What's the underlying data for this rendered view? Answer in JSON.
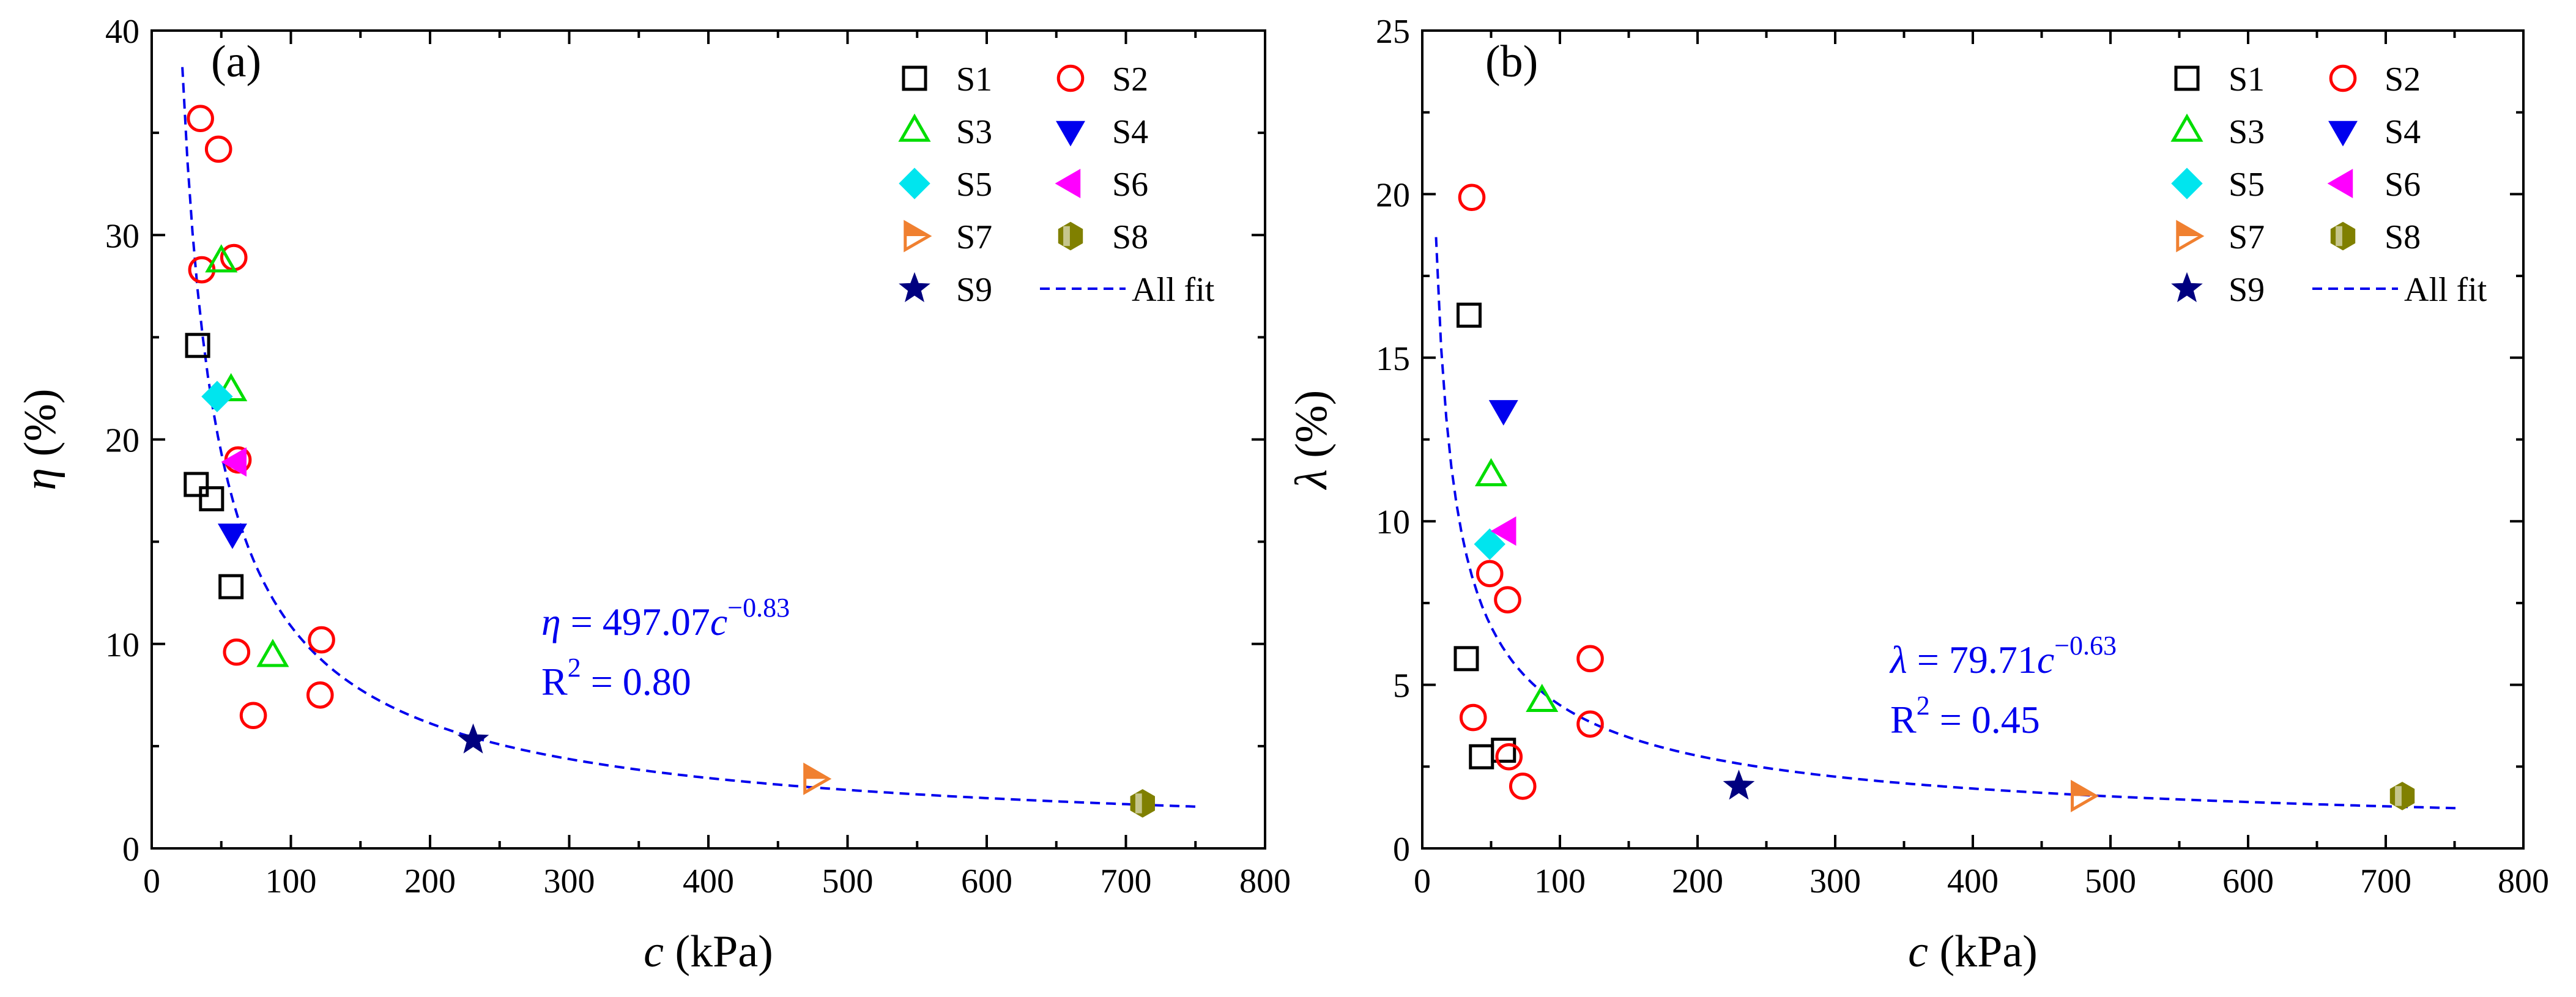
{
  "colors": {
    "S1": "#000000",
    "S2": "#ff0000",
    "S3": "#00dd00",
    "S4": "#0000ee",
    "S5": "#00e5ee",
    "S6": "#ff00ff",
    "S7": "#f08030",
    "S8": "#808000",
    "S9": "#000080",
    "fit": "#0000ee",
    "axis": "#000000"
  },
  "legend": {
    "S1": "S1",
    "S2": "S2",
    "S3": "S3",
    "S4": "S4",
    "S5": "S5",
    "S6": "S6",
    "S7": "S7",
    "S8": "S8",
    "S9": "S9",
    "fit": "All fit"
  },
  "chart_data": [
    {
      "type": "scatter",
      "panel_label": "(a)",
      "xlabel_symbol": "c",
      "xlabel_unit": " (kPa)",
      "ylabel_symbol": "η",
      "ylabel_unit": " (%)",
      "xlim": [
        0,
        800
      ],
      "ylim": [
        0,
        40
      ],
      "xticks": [
        0,
        100,
        200,
        300,
        400,
        500,
        600,
        700,
        800
      ],
      "yticks": [
        0,
        10,
        20,
        30,
        40
      ],
      "legend_position": "top-right",
      "series": [
        {
          "name": "S1",
          "marker": "square-open",
          "points": [
            [
              33,
              24.6
            ],
            [
              32,
              17.8
            ],
            [
              43,
              17.1
            ],
            [
              57,
              12.8
            ]
          ]
        },
        {
          "name": "S2",
          "marker": "circle-open",
          "points": [
            [
              35,
              35.7
            ],
            [
              48,
              34.2
            ],
            [
              36,
              28.3
            ],
            [
              59,
              28.9
            ],
            [
              62,
              19.0
            ],
            [
              61,
              9.6
            ],
            [
              122,
              10.2
            ],
            [
              121,
              7.5
            ],
            [
              73,
              6.5
            ]
          ]
        },
        {
          "name": "S3",
          "marker": "triangle-up-open",
          "points": [
            [
              50,
              28.7
            ],
            [
              57,
              22.4
            ],
            [
              87,
              9.4
            ]
          ]
        },
        {
          "name": "S4",
          "marker": "triangle-down-filled",
          "points": [
            [
              58,
              15.4
            ]
          ]
        },
        {
          "name": "S5",
          "marker": "diamond-filled",
          "points": [
            [
              47,
              22.1
            ]
          ]
        },
        {
          "name": "S6",
          "marker": "triangle-left-filled",
          "points": [
            [
              61,
              18.9
            ]
          ]
        },
        {
          "name": "S7",
          "marker": "triangle-right-half",
          "points": [
            [
              476,
              3.4
            ]
          ]
        },
        {
          "name": "S8",
          "marker": "hexagon-half",
          "points": [
            [
              712,
              2.2
            ]
          ]
        },
        {
          "name": "S9",
          "marker": "star-filled",
          "points": [
            [
              231,
              5.3
            ]
          ]
        }
      ],
      "fit": {
        "name": "All fit",
        "a": 497.07,
        "b": -0.83,
        "x_range": [
          22,
          752
        ]
      },
      "equation": {
        "symbol": "η",
        "body": " = 497.07",
        "var": "c",
        "exp": "−0.83",
        "r2_label": "R",
        "r2_sup": "2",
        "r2_value": " = 0.80"
      }
    },
    {
      "type": "scatter",
      "panel_label": "(b)",
      "xlabel_symbol": "c",
      "xlabel_unit": " (kPa)",
      "ylabel_symbol": "λ",
      "ylabel_unit": " (%)",
      "xlim": [
        0,
        800
      ],
      "ylim": [
        0,
        25
      ],
      "xticks": [
        0,
        100,
        200,
        300,
        400,
        500,
        600,
        700,
        800
      ],
      "yticks": [
        0,
        5,
        10,
        15,
        20,
        25
      ],
      "legend_position": "top-right",
      "series": [
        {
          "name": "S1",
          "marker": "square-open",
          "points": [
            [
              34,
              16.3
            ],
            [
              32,
              5.8
            ],
            [
              43,
              2.8
            ],
            [
              59,
              3.0
            ]
          ]
        },
        {
          "name": "S2",
          "marker": "circle-open",
          "points": [
            [
              36,
              19.9
            ],
            [
              49,
              8.4
            ],
            [
              62,
              7.6
            ],
            [
              122,
              5.8
            ],
            [
              37,
              4.0
            ],
            [
              122,
              3.8
            ],
            [
              63,
              2.8
            ],
            [
              73,
              1.9
            ]
          ]
        },
        {
          "name": "S3",
          "marker": "triangle-up-open",
          "points": [
            [
              50,
              11.4
            ],
            [
              87,
              4.5
            ]
          ]
        },
        {
          "name": "S4",
          "marker": "triangle-down-filled",
          "points": [
            [
              59,
              13.4
            ]
          ]
        },
        {
          "name": "S5",
          "marker": "diamond-filled",
          "points": [
            [
              49,
              9.3
            ]
          ]
        },
        {
          "name": "S6",
          "marker": "triangle-left-filled",
          "points": [
            [
              61,
              9.7
            ]
          ]
        },
        {
          "name": "S7",
          "marker": "triangle-right-half",
          "points": [
            [
              479,
              1.6
            ]
          ]
        },
        {
          "name": "S8",
          "marker": "hexagon-half",
          "points": [
            [
              712,
              1.6
            ]
          ]
        },
        {
          "name": "S9",
          "marker": "star-filled",
          "points": [
            [
              230,
              1.9
            ]
          ]
        }
      ],
      "fit": {
        "name": "All fit",
        "a": 79.71,
        "b": -0.63,
        "x_range": [
          10,
          752
        ]
      },
      "equation": {
        "symbol": "λ",
        "body": " = 79.71",
        "var": "c",
        "exp": "−0.63",
        "r2_label": "R",
        "r2_sup": "2",
        "r2_value": " = 0.45"
      }
    }
  ]
}
